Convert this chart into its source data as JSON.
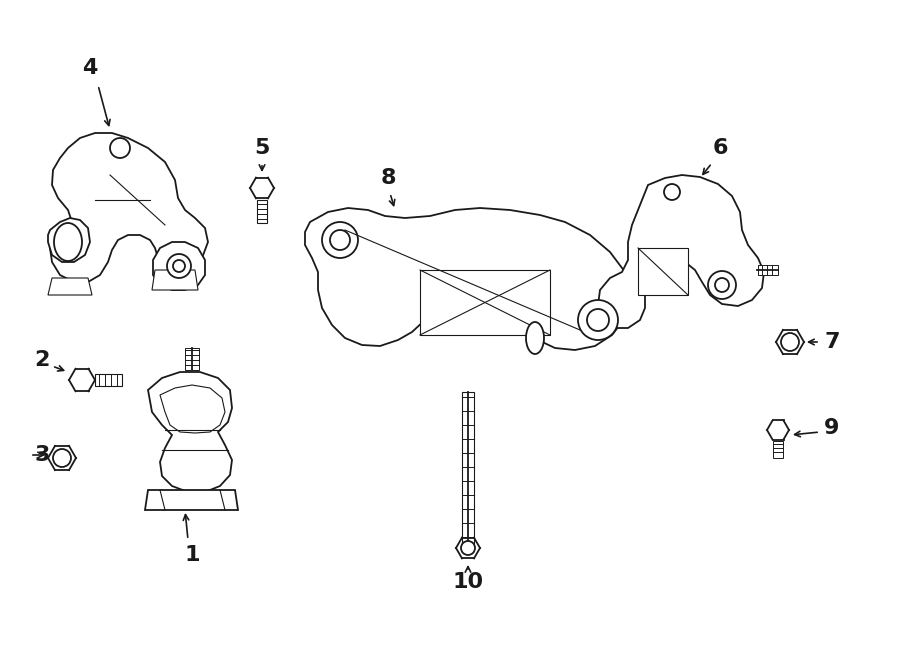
{
  "bg_color": "#ffffff",
  "line_color": "#1a1a1a",
  "fig_width": 9.0,
  "fig_height": 6.61,
  "dpi": 100,
  "lw": 1.3
}
